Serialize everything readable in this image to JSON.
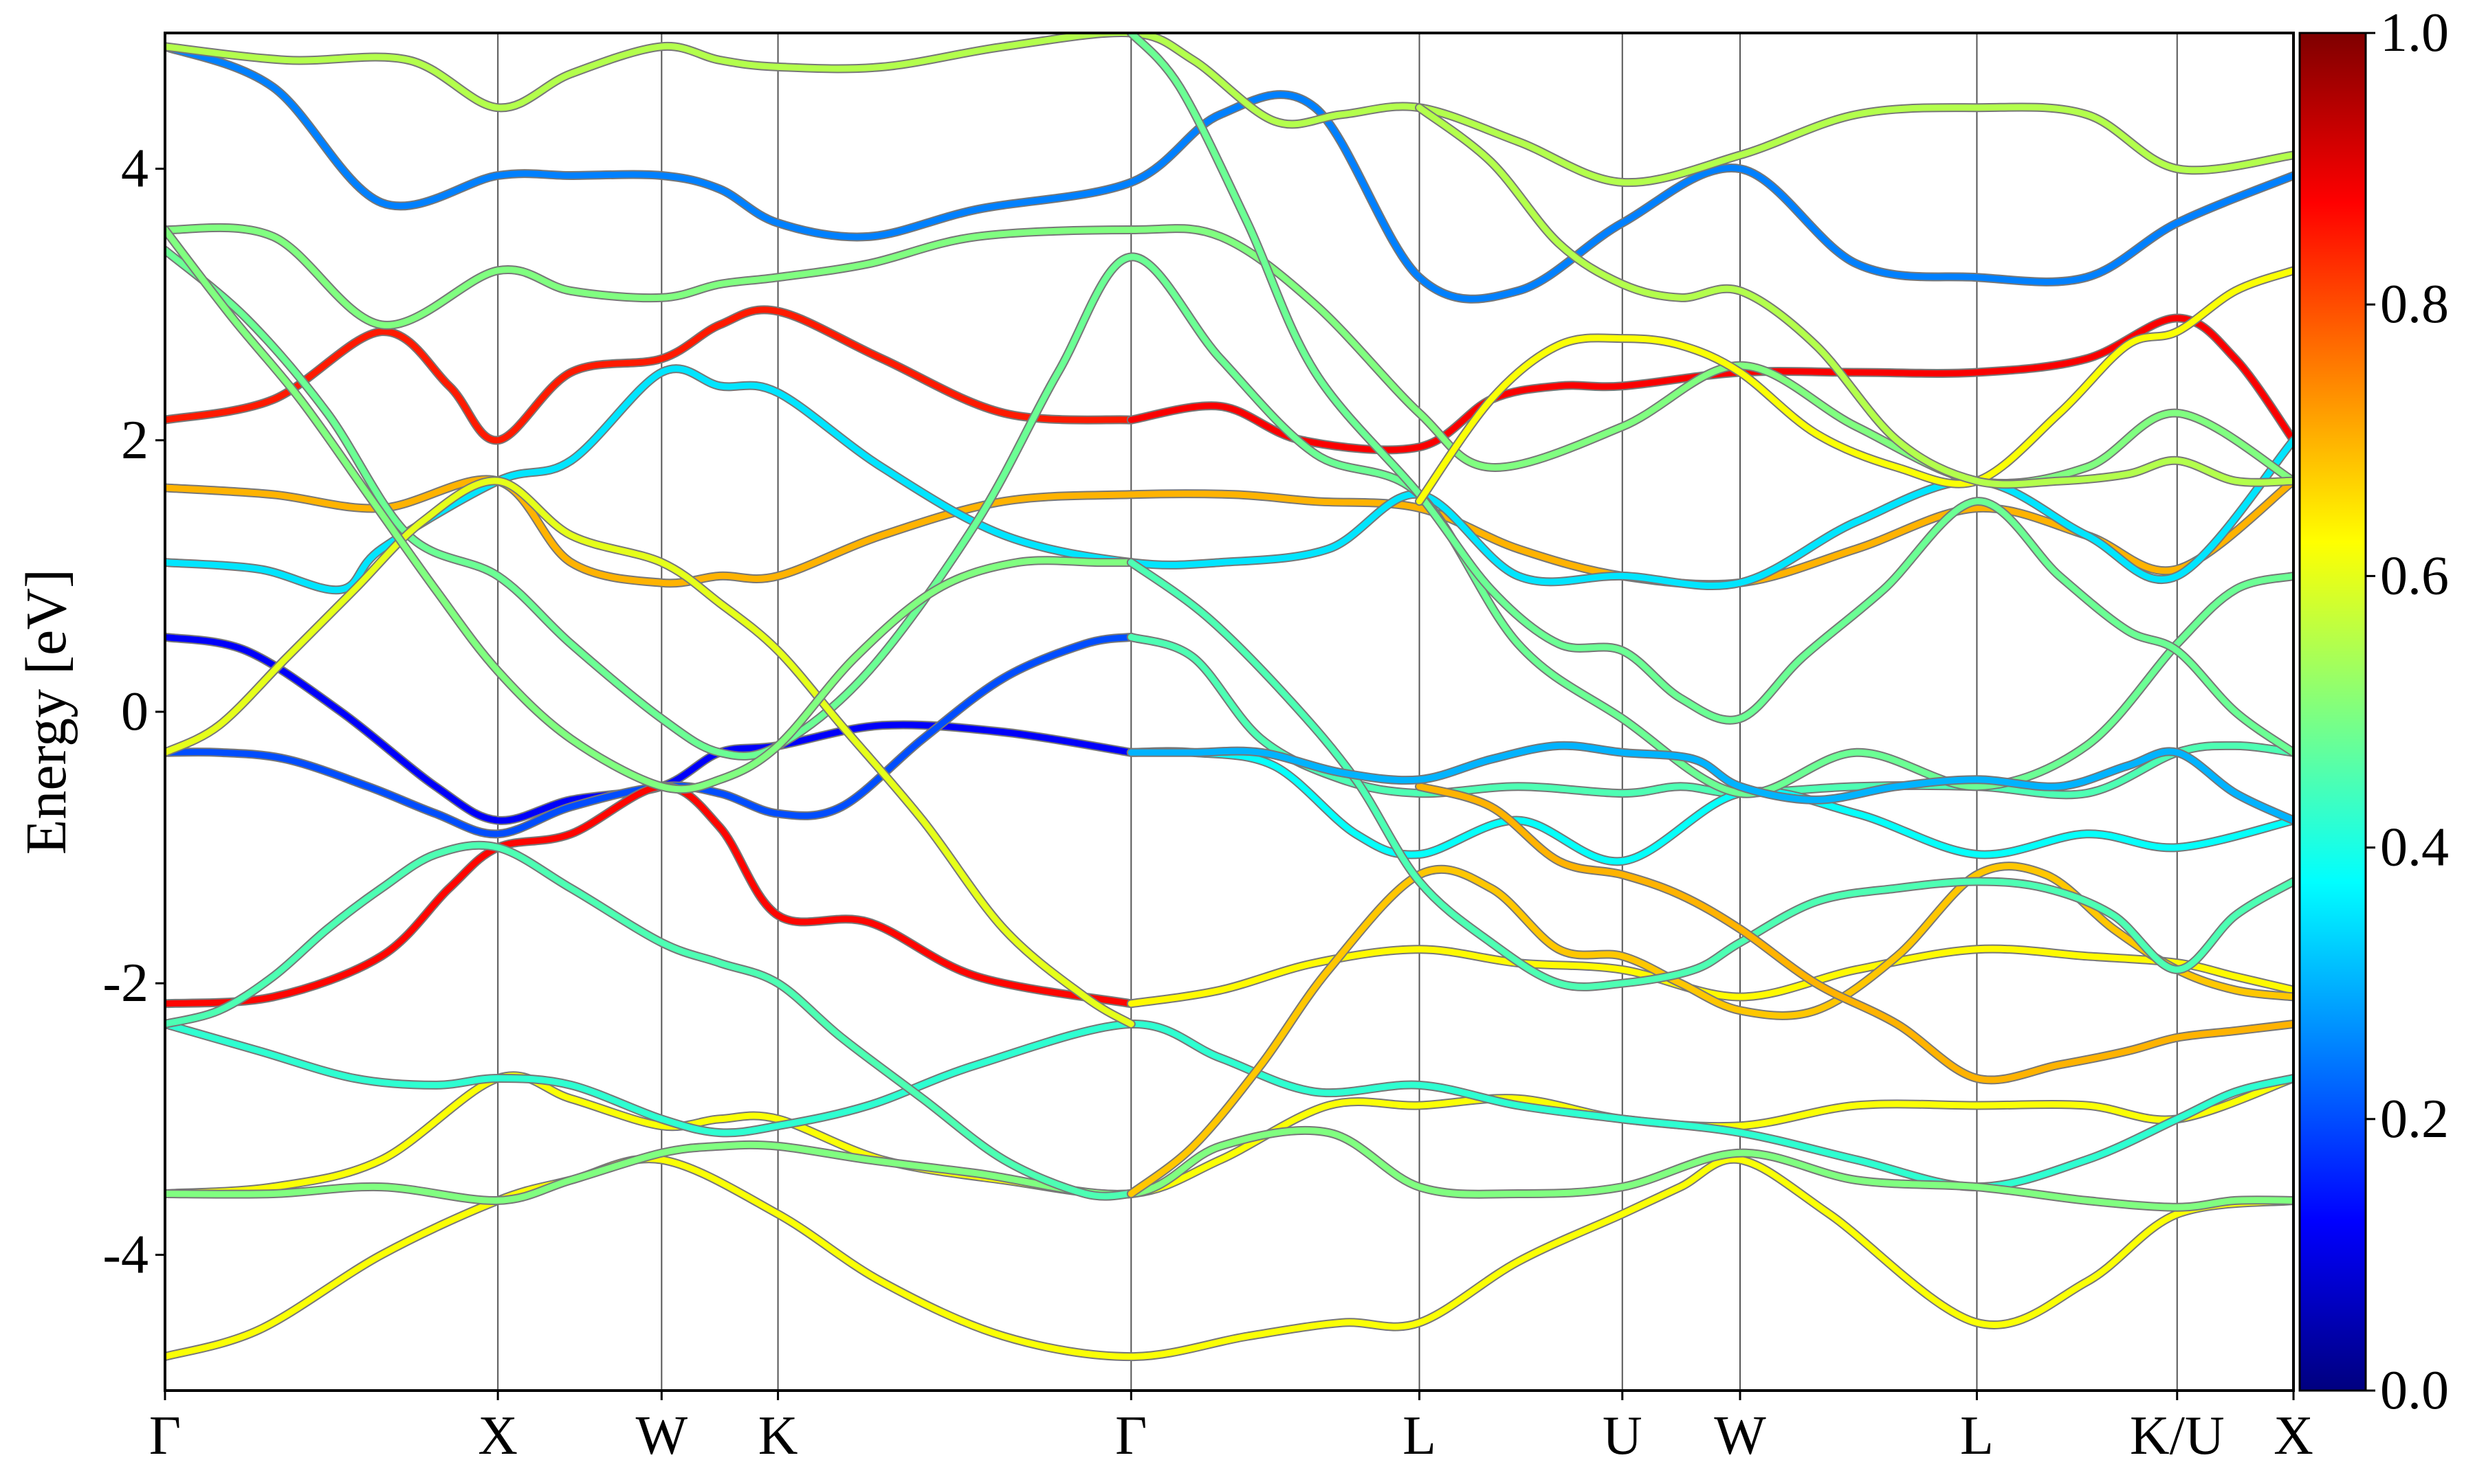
{
  "chart_data": {
    "type": "line",
    "ylabel": "Energy [eV]",
    "ylim": [
      -5,
      5
    ],
    "y_ticks": [
      "-4",
      "-2",
      "0",
      "2",
      "4"
    ],
    "y_tick_values": [
      -4,
      -2,
      0,
      2,
      4
    ],
    "x_kpoints": [
      {
        "label": "Γ",
        "x": 0.0
      },
      {
        "label": "X",
        "x": 2.46
      },
      {
        "label": "W",
        "x": 3.67
      },
      {
        "label": "K",
        "x": 4.53
      },
      {
        "label": "Γ",
        "x": 7.14
      },
      {
        "label": "L",
        "x": 9.27
      },
      {
        "label": "U",
        "x": 10.77
      },
      {
        "label": "W",
        "x": 11.64
      },
      {
        "label": "L",
        "x": 13.39
      },
      {
        "label": "K/U",
        "x": 14.87
      },
      {
        "label": "X",
        "x": 15.73
      }
    ],
    "xlim": [
      0,
      15.73
    ],
    "grid": "vertical lines at high-symmetry k-points",
    "colormap": "jet",
    "colorbar": {
      "min": 0.0,
      "max": 1.0,
      "ticks": [
        "0.0",
        "0.2",
        "0.4",
        "0.6",
        "0.8",
        "1.0"
      ],
      "tick_values": [
        0.0,
        0.2,
        0.4,
        0.6,
        0.8,
        1.0
      ]
    },
    "series": [
      {
        "x": [
          0,
          0.6,
          1.3,
          2.0,
          2.46,
          3.0,
          3.67,
          4.1,
          4.53,
          5.3,
          6.2,
          7.14
        ],
        "y": [
          0.55,
          0.45,
          0.0,
          -0.55,
          -0.8,
          -0.65,
          -0.55,
          -0.3,
          -0.25,
          -0.1,
          -0.15,
          -0.3
        ],
        "c": 0.12
      },
      {
        "x": [
          0,
          0.4,
          0.9,
          1.5,
          2.0,
          2.46,
          3.0,
          3.67,
          4.1,
          4.53,
          5.0,
          5.6,
          6.2,
          6.8,
          7.14
        ],
        "y": [
          -0.3,
          -0.3,
          -0.35,
          -0.55,
          -0.75,
          -0.9,
          -0.7,
          -0.55,
          -0.6,
          -0.75,
          -0.7,
          -0.2,
          0.25,
          0.5,
          0.55
        ],
        "c": 0.2
      },
      {
        "x": [
          7.14,
          7.6,
          8.1,
          8.7,
          9.27,
          10.0,
          10.77,
          11.2,
          11.64,
          12.5,
          13.39,
          14.2,
          14.87,
          15.3,
          15.73
        ],
        "y": [
          0.55,
          0.4,
          -0.2,
          -0.5,
          -0.6,
          -0.55,
          -0.6,
          -0.55,
          -0.6,
          -0.55,
          -0.55,
          -0.6,
          -0.3,
          -0.25,
          -0.3
        ],
        "c": 0.45
      },
      {
        "x": [
          7.14,
          7.6,
          8.2,
          8.8,
          9.27,
          10.0,
          10.77,
          11.64,
          12.5,
          13.39,
          14.2,
          14.87,
          15.73
        ],
        "y": [
          -0.3,
          -0.3,
          -0.4,
          -0.9,
          -1.05,
          -0.8,
          -1.1,
          -0.6,
          -0.75,
          -1.05,
          -0.9,
          -1.0,
          -0.8
        ],
        "c": 0.38
      },
      {
        "x": [
          0,
          0.8,
          1.6,
          2.1,
          2.46,
          3.0,
          3.67,
          4.1,
          4.53,
          5.2,
          6.0,
          7.14
        ],
        "y": [
          -2.15,
          -2.1,
          -1.8,
          -1.3,
          -1.0,
          -0.9,
          -0.55,
          -0.85,
          -1.5,
          -1.55,
          -1.95,
          -2.15
        ],
        "c": 0.87
      },
      {
        "x": [
          7.14,
          7.8,
          8.5,
          9.27,
          10.0,
          10.77,
          11.64,
          12.5,
          13.39,
          14.2,
          14.87,
          15.3,
          15.73
        ],
        "y": [
          -2.15,
          -2.05,
          -1.85,
          -1.75,
          -1.85,
          -1.9,
          -2.1,
          -1.9,
          -1.75,
          -1.8,
          -1.85,
          -1.95,
          -2.05
        ],
        "c": 0.63
      },
      {
        "x": [
          0,
          0.8,
          1.6,
          2.46,
          3.0,
          3.67,
          4.1,
          4.53,
          5.3,
          6.2,
          7.14,
          7.8,
          8.6,
          9.27,
          10.0,
          10.77,
          11.64,
          12.5,
          13.39,
          14.2,
          14.87,
          15.73
        ],
        "y": [
          -3.55,
          -3.5,
          -3.3,
          -2.7,
          -2.85,
          -3.05,
          -3.0,
          -3.0,
          -3.3,
          -3.45,
          -3.55,
          -3.3,
          -2.9,
          -2.9,
          -2.85,
          -3.0,
          -3.05,
          -2.9,
          -2.9,
          -2.9,
          -3.0,
          -2.7
        ],
        "c": 0.62
      },
      {
        "x": [
          0,
          0.7,
          1.4,
          2.0,
          2.46,
          3.0,
          3.67,
          4.1,
          4.53,
          5.2,
          6.0,
          7.14,
          7.8,
          8.5,
          9.27,
          10.0,
          10.77,
          11.64,
          12.5,
          13.39,
          14.2,
          14.87,
          15.3,
          15.73
        ],
        "y": [
          -2.3,
          -2.5,
          -2.7,
          -2.75,
          -2.7,
          -2.75,
          -3.0,
          -3.1,
          -3.05,
          -2.9,
          -2.6,
          -2.3,
          -2.55,
          -2.8,
          -2.75,
          -2.9,
          -3.0,
          -3.1,
          -3.3,
          -3.5,
          -3.3,
          -3.0,
          -2.8,
          -2.7
        ],
        "c": 0.42
      },
      {
        "x": [
          0,
          0.7,
          1.6,
          2.46,
          3.0,
          3.67,
          4.53,
          5.3,
          6.2,
          7.14,
          8.0,
          8.7,
          9.27,
          10.0,
          10.77,
          11.2,
          11.64,
          12.3,
          13.39,
          14.2,
          14.87,
          15.73
        ],
        "y": [
          -4.75,
          -4.55,
          -4.0,
          -3.6,
          -3.45,
          -3.3,
          -3.7,
          -4.2,
          -4.6,
          -4.75,
          -4.6,
          -4.5,
          -4.5,
          -4.05,
          -3.7,
          -3.5,
          -3.3,
          -3.7,
          -4.5,
          -4.2,
          -3.7,
          -3.6
        ],
        "c": 0.62
      },
      {
        "x": [
          0,
          0.8,
          1.6,
          2.46,
          3.0,
          3.67,
          4.1,
          4.53,
          5.2,
          6.0,
          7.14,
          7.8,
          8.6,
          9.27,
          10.0,
          10.77,
          11.64,
          12.5,
          13.39,
          14.2,
          14.87,
          15.3,
          15.73
        ],
        "y": [
          -3.55,
          -3.55,
          -3.5,
          -3.6,
          -3.45,
          -3.25,
          -3.2,
          -3.2,
          -3.3,
          -3.4,
          -3.55,
          -3.2,
          -3.1,
          -3.5,
          -3.55,
          -3.5,
          -3.25,
          -3.45,
          -3.5,
          -3.6,
          -3.65,
          -3.6,
          -3.6
        ],
        "c": 0.5
      },
      {
        "x": [
          0,
          0.8,
          1.6,
          2.1,
          2.46,
          3.0,
          3.67,
          4.1,
          4.53,
          5.3,
          6.2,
          7.14
        ],
        "y": [
          2.15,
          2.3,
          2.8,
          2.4,
          2.0,
          2.5,
          2.6,
          2.85,
          2.95,
          2.6,
          2.2,
          2.15
        ],
        "c": 0.85
      },
      {
        "x": [
          7.14,
          7.8,
          8.4,
          9.27,
          9.8,
          10.3,
          10.77,
          11.64,
          12.5,
          13.39,
          14.2,
          14.87,
          15.3,
          15.73
        ],
        "y": [
          2.15,
          2.25,
          2.0,
          1.95,
          2.3,
          2.4,
          2.4,
          2.5,
          2.5,
          2.5,
          2.6,
          2.9,
          2.6,
          2.0
        ],
        "c": 0.88
      },
      {
        "x": [
          0,
          0.8,
          1.6,
          2.46,
          3.0,
          3.67,
          4.1,
          4.53,
          5.3,
          6.2,
          7.14,
          7.9,
          8.5,
          9.27,
          10.0,
          10.77,
          11.64,
          12.5,
          13.39,
          14.2,
          14.87,
          15.73
        ],
        "y": [
          1.65,
          1.6,
          1.5,
          1.7,
          1.1,
          0.95,
          1.0,
          1.0,
          1.3,
          1.55,
          1.6,
          1.6,
          1.55,
          1.5,
          1.2,
          1.0,
          0.95,
          1.2,
          1.5,
          1.3,
          1.05,
          1.7
        ],
        "c": 0.7
      },
      {
        "x": [
          0,
          0.7,
          1.3,
          1.6,
          2.46,
          3.0,
          3.67,
          4.1,
          4.53,
          5.3,
          6.2,
          7.14,
          7.8,
          8.6,
          9.27,
          10.0,
          10.77,
          11.64,
          12.5,
          13.39,
          14.2,
          14.87,
          15.73
        ],
        "y": [
          1.1,
          1.05,
          0.9,
          1.2,
          1.7,
          1.85,
          2.5,
          2.4,
          2.35,
          1.8,
          1.3,
          1.1,
          1.1,
          1.2,
          1.6,
          1.0,
          1.0,
          0.95,
          1.4,
          1.7,
          1.3,
          1.0,
          2.0
        ],
        "c": 0.35
      },
      {
        "x": [
          0,
          0.8,
          1.6,
          2.46,
          3.0,
          3.67,
          4.1,
          4.53,
          5.2,
          6.0,
          7.14,
          7.8,
          8.5,
          9.27,
          9.8,
          10.77,
          11.64,
          12.5,
          13.39,
          14.2,
          14.87,
          15.73
        ],
        "y": [
          3.55,
          3.5,
          2.85,
          3.25,
          3.1,
          3.05,
          3.15,
          3.2,
          3.3,
          3.5,
          3.55,
          3.5,
          3.0,
          2.2,
          1.8,
          2.1,
          2.55,
          2.1,
          1.7,
          1.8,
          2.2,
          1.7
        ],
        "c": 0.5
      },
      {
        "x": [
          0,
          0.8,
          1.6,
          2.46,
          3.0,
          3.67,
          4.1,
          4.53,
          5.2,
          6.0,
          7.14,
          7.8,
          8.5,
          9.27,
          10.0,
          10.77,
          11.64,
          12.5,
          13.39,
          14.2,
          14.87,
          15.73
        ],
        "y": [
          4.9,
          4.6,
          3.75,
          3.95,
          3.95,
          3.95,
          3.85,
          3.6,
          3.5,
          3.7,
          3.9,
          4.4,
          4.45,
          3.2,
          3.1,
          3.6,
          4.0,
          3.3,
          3.2,
          3.2,
          3.6,
          3.95
        ],
        "c": 0.25
      },
      {
        "x": [
          0,
          0.6,
          1.2,
          1.8,
          2.46,
          3.0,
          3.67,
          4.1,
          4.53,
          5.2,
          6.0,
          6.6,
          7.14,
          7.8,
          8.5,
          9.27,
          10.0,
          10.77,
          11.64,
          12.5,
          13.39,
          14.2,
          14.87,
          15.3,
          15.73
        ],
        "y": [
          3.4,
          2.9,
          2.2,
          1.3,
          1.0,
          0.5,
          -0.05,
          -0.3,
          -0.25,
          0.3,
          1.4,
          2.5,
          3.35,
          2.6,
          1.9,
          1.6,
          0.5,
          -0.05,
          -0.6,
          -0.3,
          -0.55,
          -0.25,
          0.5,
          0.9,
          1.0
        ],
        "c": 0.48
      },
      {
        "x": [
          0,
          0.9,
          1.8,
          2.46,
          3.0,
          3.67,
          4.1,
          4.53,
          5.3,
          6.2,
          7.14,
          7.6,
          8.2,
          8.7,
          9.27,
          10.0,
          10.77,
          11.64,
          12.5,
          13.39,
          14.2,
          14.87,
          15.73
        ],
        "y": [
          4.9,
          4.8,
          4.8,
          4.45,
          4.7,
          4.9,
          4.8,
          4.75,
          4.75,
          4.9,
          5.0,
          4.8,
          4.35,
          4.4,
          4.45,
          4.2,
          3.9,
          4.1,
          4.4,
          4.45,
          4.4,
          4.0,
          4.1
        ],
        "c": 0.55
      },
      {
        "x": [
          0,
          0.4,
          0.8,
          1.2,
          1.6,
          2.0,
          2.46,
          3.0,
          3.67,
          4.1,
          4.53,
          5.0,
          5.6,
          6.2,
          6.8,
          7.14
        ],
        "y": [
          -2.3,
          -2.2,
          -1.95,
          -1.6,
          -1.3,
          -1.05,
          -1.0,
          -1.3,
          -1.7,
          -1.85,
          -2.0,
          -2.4,
          -2.85,
          -3.3,
          -3.55,
          -3.55
        ],
        "c": 0.45
      },
      {
        "x": [
          0,
          0.4,
          0.9,
          1.4,
          1.9,
          2.46,
          3.0,
          3.67,
          4.1,
          4.53,
          5.0,
          5.6,
          6.2,
          6.8,
          7.14
        ],
        "y": [
          -0.3,
          -0.1,
          0.4,
          0.9,
          1.4,
          1.7,
          1.3,
          1.1,
          0.8,
          0.45,
          -0.1,
          -0.8,
          -1.6,
          -2.1,
          -2.3
        ],
        "c": 0.6
      },
      {
        "x": [
          0,
          0.5,
          1.0,
          1.5,
          2.0,
          2.46,
          3.0,
          3.67,
          4.1,
          4.53,
          5.1,
          5.7,
          6.3,
          6.9,
          7.14
        ],
        "y": [
          3.55,
          2.9,
          2.3,
          1.6,
          0.9,
          0.3,
          -0.2,
          -0.55,
          -0.5,
          -0.25,
          0.4,
          0.9,
          1.1,
          1.1,
          1.1
        ],
        "c": 0.5
      },
      {
        "x": [
          7.14,
          7.6,
          8.1,
          8.6,
          9.27,
          9.8,
          10.3,
          10.77,
          11.2,
          11.64,
          12.2,
          12.8,
          13.39,
          13.9,
          14.4,
          14.87,
          15.3,
          15.73
        ],
        "y": [
          -3.55,
          -3.2,
          -2.6,
          -1.9,
          -1.2,
          -1.3,
          -1.75,
          -1.8,
          -2.0,
          -2.2,
          -2.2,
          -1.8,
          -1.2,
          -1.2,
          -1.6,
          -1.9,
          -2.05,
          -2.1
        ],
        "c": 0.68
      },
      {
        "x": [
          7.14,
          7.7,
          8.3,
          8.8,
          9.27,
          9.8,
          10.3,
          10.77,
          11.3,
          11.64,
          12.2,
          12.8,
          13.39,
          13.9,
          14.4,
          14.87,
          15.3,
          15.73
        ],
        "y": [
          1.1,
          0.7,
          0.1,
          -0.5,
          -1.25,
          -1.7,
          -2.0,
          -2.0,
          -1.9,
          -1.7,
          -1.4,
          -1.3,
          -1.25,
          -1.3,
          -1.5,
          -1.9,
          -1.5,
          -1.25
        ],
        "c": 0.45
      },
      {
        "x": [
          7.14,
          7.5,
          8.0,
          8.5,
          9.27,
          9.8,
          10.3,
          10.77,
          11.2,
          11.64,
          12.1,
          12.7,
          13.39,
          14.0,
          14.5,
          14.87,
          15.3,
          15.73
        ],
        "y": [
          5.0,
          4.6,
          3.6,
          2.5,
          1.6,
          0.9,
          0.5,
          0.45,
          0.1,
          -0.05,
          0.4,
          0.9,
          1.55,
          1.0,
          0.6,
          0.45,
          0.0,
          -0.3
        ],
        "c": 0.48
      },
      {
        "x": [
          9.27,
          9.8,
          10.3,
          10.77,
          11.2,
          11.64,
          12.2,
          12.8,
          13.39,
          14.0,
          14.5,
          14.87,
          15.3,
          15.73
        ],
        "y": [
          1.55,
          2.3,
          2.7,
          2.75,
          2.7,
          2.5,
          2.05,
          1.8,
          1.7,
          2.2,
          2.7,
          2.8,
          3.1,
          3.25
        ],
        "c": 0.62
      },
      {
        "x": [
          9.27,
          9.8,
          10.3,
          10.77,
          11.2,
          11.64,
          12.2,
          12.8,
          13.39,
          14.0,
          14.5,
          14.87,
          15.3,
          15.73
        ],
        "y": [
          4.45,
          4.05,
          3.45,
          3.15,
          3.05,
          3.1,
          2.7,
          2.0,
          1.7,
          1.7,
          1.75,
          1.85,
          1.7,
          1.7
        ],
        "c": 0.55
      },
      {
        "x": [
          9.27,
          9.8,
          10.3,
          10.77,
          11.2,
          11.64,
          12.2,
          12.8,
          13.39,
          14.0,
          14.5,
          14.87,
          15.3,
          15.73
        ],
        "y": [
          -0.55,
          -0.7,
          -1.1,
          -1.2,
          -1.35,
          -1.6,
          -2.0,
          -2.3,
          -2.7,
          -2.6,
          -2.5,
          -2.4,
          -2.35,
          -2.3
        ],
        "c": 0.7
      },
      {
        "x": [
          7.14,
          7.6,
          8.1,
          8.7,
          9.27,
          9.8,
          10.3,
          10.77,
          11.3,
          11.64,
          12.2,
          12.8,
          13.39,
          14.0,
          14.5,
          14.87,
          15.3,
          15.73
        ],
        "y": [
          -0.3,
          -0.3,
          -0.3,
          -0.45,
          -0.5,
          -0.35,
          -0.25,
          -0.3,
          -0.35,
          -0.55,
          -0.65,
          -0.55,
          -0.5,
          -0.55,
          -0.4,
          -0.3,
          -0.6,
          -0.8
        ],
        "c": 0.3
      }
    ]
  }
}
